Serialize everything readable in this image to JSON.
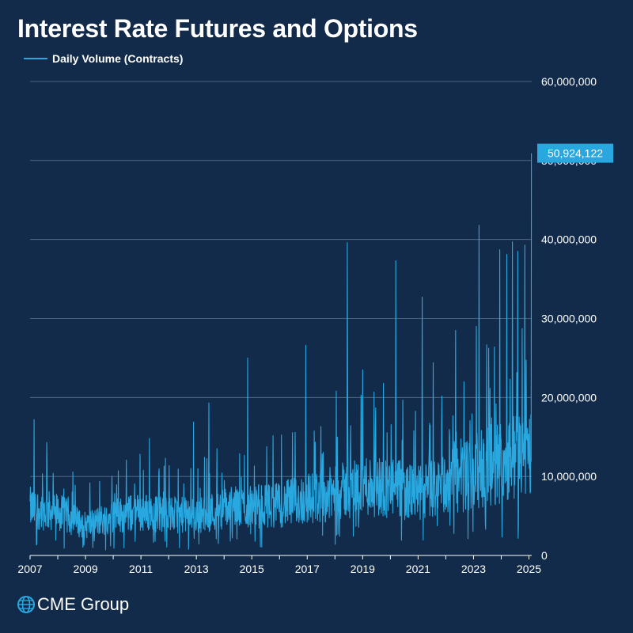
{
  "title": "Interest Rate Futures and Options",
  "brand": {
    "name": "CME Group",
    "icon": "globe-icon"
  },
  "colors": {
    "background": "#122b4a",
    "series": "#29a8e0",
    "grid": "#5a7390",
    "text": "#ffffff"
  },
  "chart_data": {
    "type": "line",
    "series": [
      {
        "name": "Daily Volume (Contracts)",
        "color": "#29a8e0"
      }
    ],
    "x_range": [
      2007.0,
      2025.1
    ],
    "ylim": [
      0,
      60000000
    ],
    "yticks": [
      "0",
      "10,000,000",
      "20,000,000",
      "30,000,000",
      "40,000,000",
      "50,000,000",
      "60,000,000"
    ],
    "ytick_values": [
      0,
      10000000,
      20000000,
      30000000,
      40000000,
      50000000,
      60000000
    ],
    "xticks": [
      "2007",
      "2009",
      "2011",
      "2013",
      "2015",
      "2017",
      "2019",
      "2021",
      "2023",
      "2025"
    ],
    "xtick_values": [
      2007,
      2009,
      2011,
      2013,
      2015,
      2017,
      2019,
      2021,
      2023,
      2025
    ],
    "grid": "horizontal",
    "legend": "top-left",
    "last_value": 50924122,
    "last_value_label": "50,924,122",
    "trend": [
      [
        2007.0,
        6000000
      ],
      [
        2008.0,
        5500000
      ],
      [
        2009.0,
        3800000
      ],
      [
        2010.0,
        5000000
      ],
      [
        2011.0,
        5500000
      ],
      [
        2012.0,
        5200000
      ],
      [
        2013.0,
        5000000
      ],
      [
        2014.0,
        6000000
      ],
      [
        2015.0,
        6200000
      ],
      [
        2016.0,
        6400000
      ],
      [
        2017.0,
        7200000
      ],
      [
        2018.0,
        7800000
      ],
      [
        2019.0,
        9000000
      ],
      [
        2020.0,
        8600000
      ],
      [
        2021.0,
        7800000
      ],
      [
        2022.0,
        9000000
      ],
      [
        2023.0,
        10500000
      ],
      [
        2024.0,
        12000000
      ],
      [
        2025.0,
        13000000
      ]
    ],
    "spikes": [
      [
        2007.15,
        17200000
      ],
      [
        2007.6,
        14300000
      ],
      [
        2011.3,
        14800000
      ],
      [
        2012.9,
        16900000
      ],
      [
        2013.45,
        19300000
      ],
      [
        2014.85,
        25000000
      ],
      [
        2016.95,
        26600000
      ],
      [
        2018.05,
        20800000
      ],
      [
        2018.45,
        39600000
      ],
      [
        2019.0,
        23500000
      ],
      [
        2019.75,
        21800000
      ],
      [
        2020.2,
        37300000
      ],
      [
        2021.15,
        32700000
      ],
      [
        2021.55,
        24400000
      ],
      [
        2022.35,
        28500000
      ],
      [
        2022.65,
        22000000
      ],
      [
        2023.1,
        29000000
      ],
      [
        2023.2,
        41800000
      ],
      [
        2023.75,
        26400000
      ],
      [
        2023.95,
        38700000
      ],
      [
        2024.2,
        38100000
      ],
      [
        2024.4,
        39700000
      ],
      [
        2024.6,
        38500000
      ],
      [
        2024.85,
        39300000
      ]
    ]
  }
}
